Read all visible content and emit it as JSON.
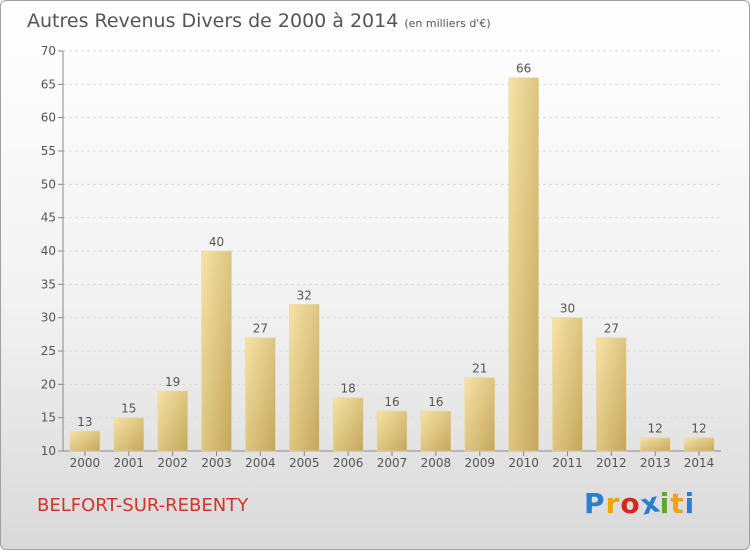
{
  "chart_data": {
    "type": "bar",
    "title": "Autres Revenus Divers de 2000 à 2014",
    "unit_label": "(en milliers d'€)",
    "categories": [
      "2000",
      "2001",
      "2002",
      "2003",
      "2004",
      "2005",
      "2006",
      "2007",
      "2008",
      "2009",
      "2010",
      "2011",
      "2012",
      "2013",
      "2014"
    ],
    "values": [
      13,
      15,
      19,
      40,
      27,
      32,
      18,
      16,
      16,
      21,
      66,
      30,
      27,
      12,
      12
    ],
    "ylim": [
      10,
      70
    ],
    "yticks": [
      10,
      15,
      20,
      25,
      30,
      35,
      40,
      45,
      50,
      55,
      60,
      65,
      70
    ],
    "xlabel": "",
    "ylabel": "",
    "grid": true
  },
  "footer": {
    "town": "BELFORT-SUR-REBENTY",
    "brand_letters": [
      "P",
      "r",
      "o",
      "x",
      "i",
      "t",
      "i"
    ],
    "brand_colors": [
      "#2a7fd4",
      "#f2a20b",
      "#d8261f",
      "#2a7fd4",
      "#5aa82c",
      "#f2a20b",
      "#2a7fd4"
    ]
  },
  "colors": {
    "bar_light": "#f6e0a0",
    "bar_dark": "#c8ad62",
    "grid": "#dcdcdc",
    "axis_text": "#555555"
  }
}
